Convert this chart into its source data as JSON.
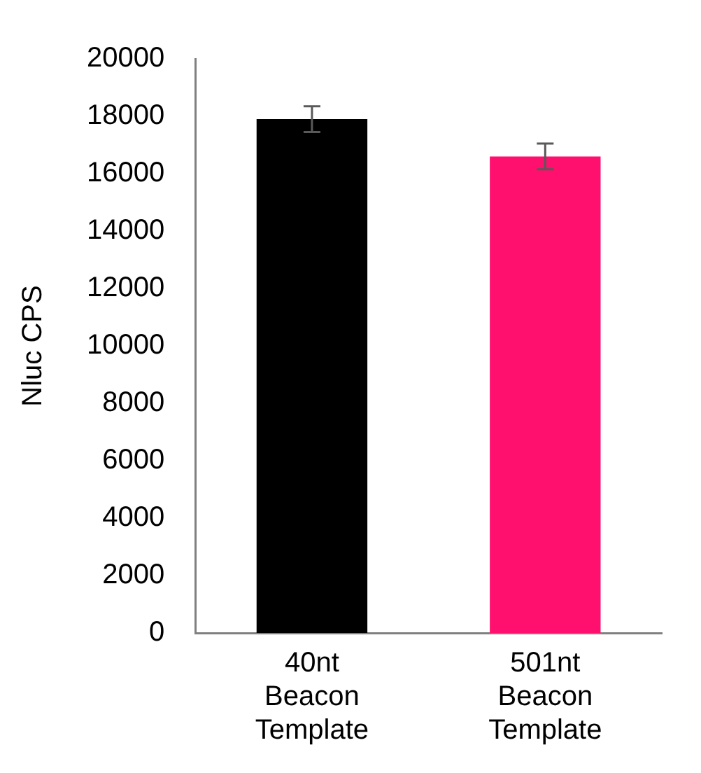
{
  "chart_data": {
    "type": "bar",
    "ylabel": "Nluc CPS",
    "categories": [
      "40nt Beacon Template",
      "501nt Beacon Template"
    ],
    "values": [
      17900,
      16600
    ],
    "colors": [
      "#000000",
      "#ff0f6e"
    ],
    "errors": [
      450,
      450
    ],
    "ylim": [
      0,
      20000
    ],
    "yticks": [
      0,
      2000,
      4000,
      6000,
      8000,
      10000,
      12000,
      14000,
      16000,
      18000,
      20000
    ],
    "grid": false,
    "legend": false
  }
}
